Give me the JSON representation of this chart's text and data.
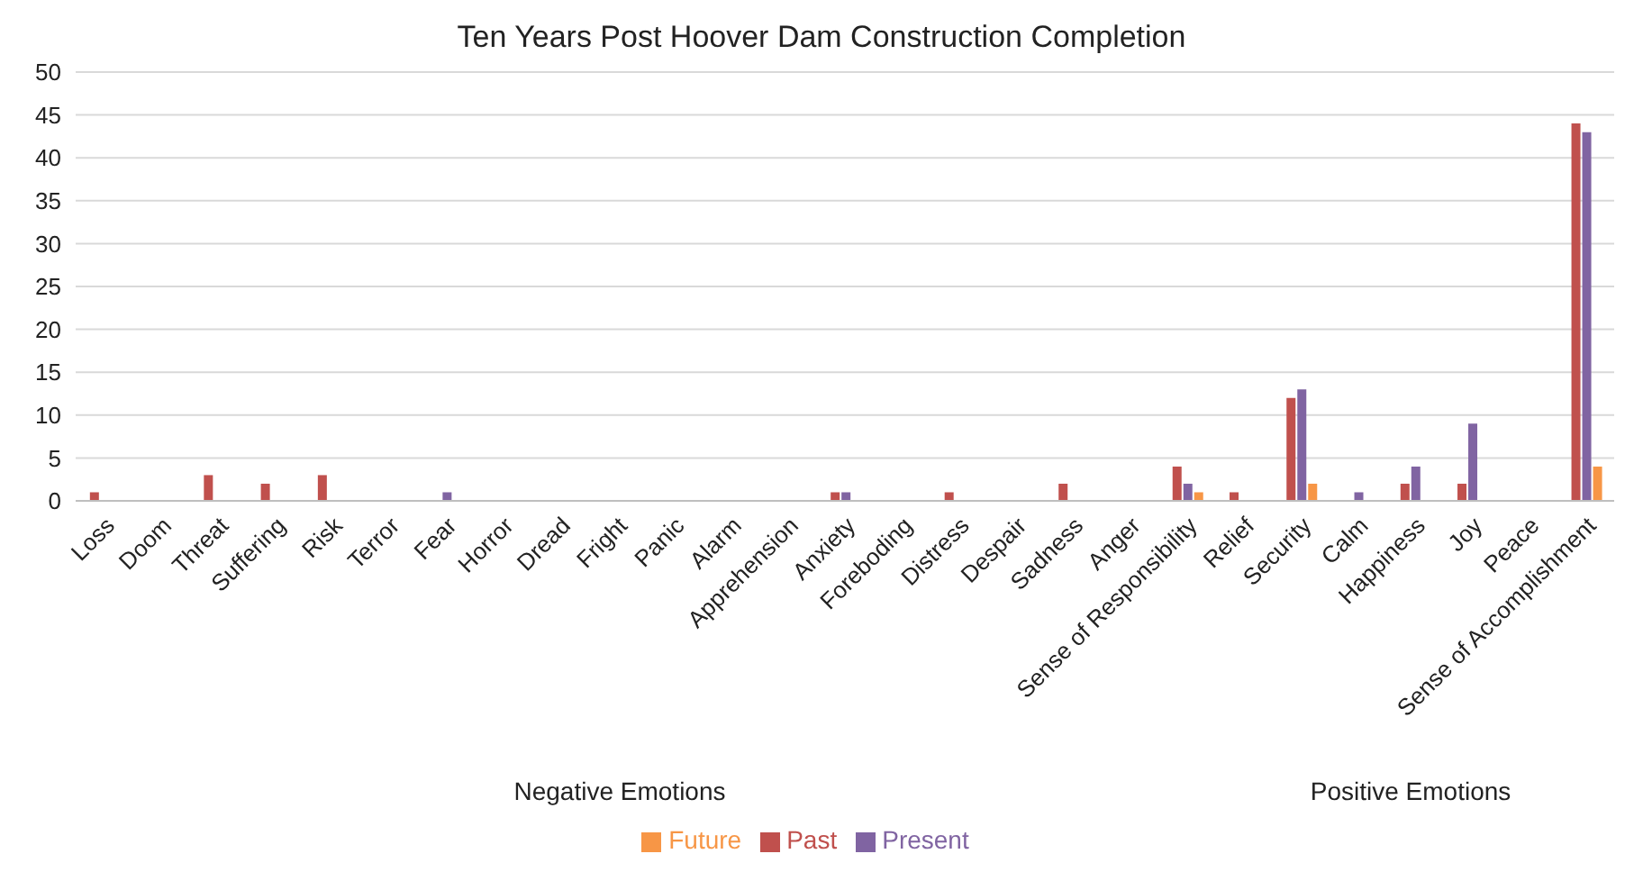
{
  "chart_data": {
    "type": "bar",
    "title": "Ten Years Post Hoover Dam Construction Completion",
    "categories": [
      "Loss",
      "Doom",
      "Threat",
      "Suffering",
      "Risk",
      "Terror",
      "Fear",
      "Horror",
      "Dread",
      "Fright",
      "Panic",
      "Alarm",
      "Apprehension",
      "Anxiety",
      "Foreboding",
      "Distress",
      "Despair",
      "Sadness",
      "Anger",
      "Sense of Responsibility",
      "Relief",
      "Security",
      "Calm",
      "Happiness",
      "Joy",
      "Peace",
      "Sense of Accomplishment"
    ],
    "series": [
      {
        "name": "Past",
        "color": "#c0504d",
        "values": [
          1,
          0,
          3,
          2,
          3,
          0,
          0,
          0,
          0,
          0,
          0,
          0,
          0,
          1,
          0,
          1,
          0,
          2,
          0,
          4,
          1,
          12,
          0,
          2,
          2,
          0,
          44
        ]
      },
      {
        "name": "Present",
        "color": "#8064a2",
        "values": [
          0,
          0,
          0,
          0,
          0,
          0,
          1,
          0,
          0,
          0,
          0,
          0,
          0,
          1,
          0,
          0,
          0,
          0,
          0,
          2,
          0,
          13,
          1,
          4,
          9,
          0,
          43
        ]
      },
      {
        "name": "Future",
        "color": "#f79646",
        "values": [
          0,
          0,
          0,
          0,
          0,
          0,
          0,
          0,
          0,
          0,
          0,
          0,
          0,
          0,
          0,
          0,
          0,
          0,
          0,
          1,
          0,
          2,
          0,
          0,
          0,
          0,
          4
        ]
      }
    ],
    "ylim": [
      0,
      50
    ],
    "yticks": [
      0,
      5,
      10,
      15,
      20,
      25,
      30,
      35,
      40,
      45,
      50
    ],
    "grid": "y",
    "legend": "bottom",
    "annotations": [
      "Negative Emotions",
      "Positive Emotions"
    ]
  }
}
